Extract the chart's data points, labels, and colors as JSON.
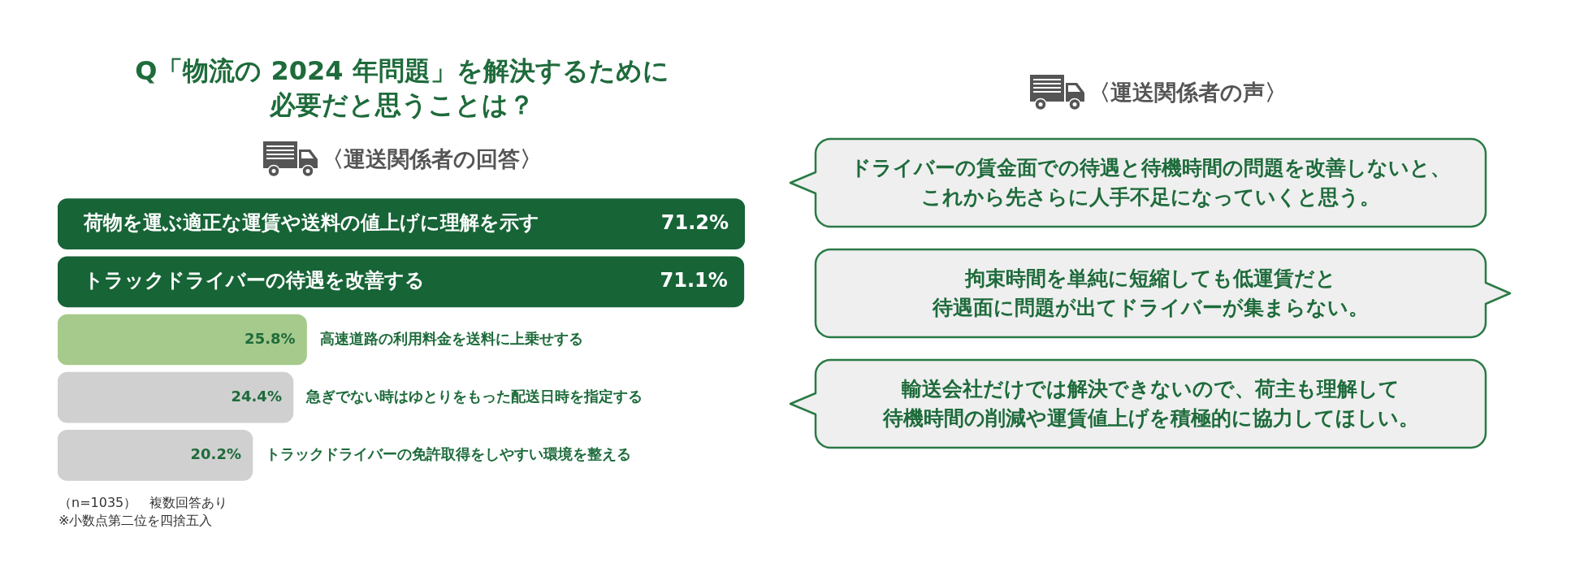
{
  "chart_data": [
    {
      "type": "bar",
      "orientation": "horizontal",
      "title": "Q「物流の 2024 年問題」を解決するために必要だと思うことは？",
      "subtitle": "〈運送関係者の回答〉",
      "categories": [
        "荷物を運ぶ適正な運賃や送料の値上げに理解を示す",
        "トラックドライバーの待遇を改善する",
        "高速道路の利用料金を送料に上乗せする",
        "急ぎでない時はゆとりをもった配送日時を指定する",
        "トラックドライバーの免許取得をしやすい環境を整える"
      ],
      "values": [
        71.2,
        71.1,
        25.8,
        24.4,
        20.2
      ],
      "colors": [
        "#176437",
        "#176437",
        "#a6ca8c",
        "#d0d0d0",
        "#d0d0d0"
      ],
      "value_labels": [
        "71.2%",
        "71.1%",
        "25.8%",
        "24.4%",
        "20.2%"
      ],
      "tick_labels": "y",
      "annotations": [
        "（n=1035）　複数回答あり",
        "※小数点第二位を四捨五入"
      ]
    },
    {
      "type": "other",
      "title": "〈運送関係者の声〉",
      "annotations": [
        "ドライバーの賃金面での待遇と待機時間の問題を改善しないと、これから先さらに人手不足になっていくと思う。",
        "拘束時間を単純に短縮しても低運賃だと待遇面に問題が出てドライバーが集まらない。",
        "輸送会社だけでは解決できないので、荷主も理解して待機時間の削減や運賃値上げを積極的に協力してほしい。"
      ]
    }
  ]
}
